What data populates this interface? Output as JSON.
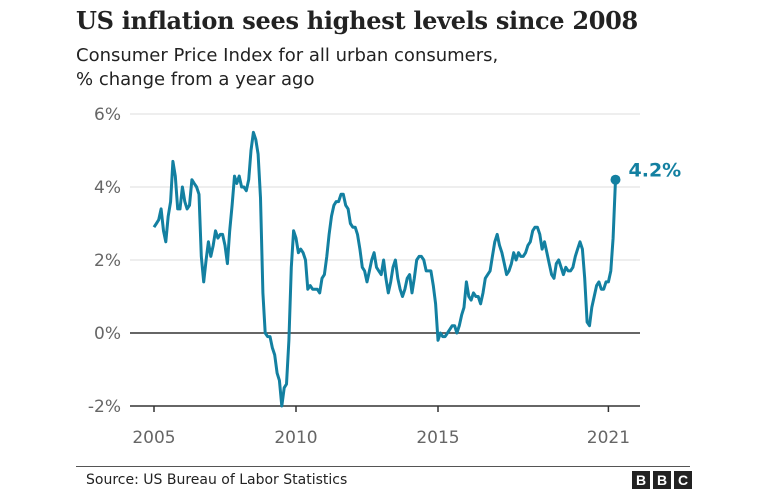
{
  "chart_data": {
    "type": "line",
    "title": "US inflation sees highest levels since 2008",
    "subtitle": [
      "Consumer Price Index for all urban consumers,",
      "% change from a year ago"
    ],
    "xlabel": "",
    "ylabel": "",
    "ylim": [
      -2,
      6
    ],
    "xlim": [
      2005,
      2021.33
    ],
    "y_ticks": [
      {
        "value": 6,
        "label": "6%"
      },
      {
        "value": 4,
        "label": "4%"
      },
      {
        "value": 2,
        "label": "2%"
      },
      {
        "value": 0,
        "label": "0%"
      },
      {
        "value": -2,
        "label": "-2%"
      }
    ],
    "x_ticks": [
      {
        "value": 2005,
        "label": "2005"
      },
      {
        "value": 2010,
        "label": "2010"
      },
      {
        "value": 2015,
        "label": "2015"
      },
      {
        "value": 2021,
        "label": "2021"
      }
    ],
    "grid": true,
    "line_color": "#1380A1",
    "start": "2005-01",
    "frequency": "monthly",
    "values": [
      2.9,
      3.0,
      3.1,
      3.4,
      2.8,
      2.5,
      3.2,
      3.6,
      4.7,
      4.3,
      3.4,
      3.4,
      4.0,
      3.6,
      3.4,
      3.5,
      4.2,
      4.1,
      4.0,
      3.8,
      2.1,
      1.4,
      2.0,
      2.5,
      2.1,
      2.4,
      2.8,
      2.6,
      2.7,
      2.7,
      2.4,
      1.9,
      2.8,
      3.5,
      4.3,
      4.1,
      4.3,
      4.0,
      4.0,
      3.9,
      4.2,
      5.0,
      5.5,
      5.3,
      4.9,
      3.7,
      1.1,
      0.0,
      -0.1,
      -0.1,
      -0.4,
      -0.6,
      -1.1,
      -1.3,
      -2.0,
      -1.5,
      -1.4,
      -0.2,
      1.8,
      2.8,
      2.6,
      2.2,
      2.3,
      2.2,
      2.0,
      1.2,
      1.3,
      1.2,
      1.2,
      1.2,
      1.1,
      1.5,
      1.6,
      2.1,
      2.7,
      3.2,
      3.5,
      3.6,
      3.6,
      3.8,
      3.8,
      3.5,
      3.4,
      3.0,
      2.9,
      2.9,
      2.7,
      2.3,
      1.8,
      1.7,
      1.4,
      1.7,
      2.0,
      2.2,
      1.8,
      1.7,
      1.6,
      2.0,
      1.5,
      1.1,
      1.4,
      1.8,
      2.0,
      1.5,
      1.2,
      1.0,
      1.2,
      1.5,
      1.6,
      1.1,
      1.5,
      2.0,
      2.1,
      2.1,
      2.0,
      1.7,
      1.7,
      1.7,
      1.3,
      0.8,
      -0.2,
      0.0,
      -0.1,
      -0.1,
      0.0,
      0.1,
      0.2,
      0.2,
      0.0,
      0.2,
      0.5,
      0.7,
      1.4,
      1.0,
      0.9,
      1.1,
      1.0,
      1.0,
      0.8,
      1.1,
      1.5,
      1.6,
      1.7,
      2.1,
      2.5,
      2.7,
      2.4,
      2.2,
      1.9,
      1.6,
      1.7,
      1.9,
      2.2,
      2.0,
      2.2,
      2.1,
      2.1,
      2.2,
      2.4,
      2.5,
      2.8,
      2.9,
      2.9,
      2.7,
      2.3,
      2.5,
      2.2,
      1.9,
      1.6,
      1.5,
      1.9,
      2.0,
      1.8,
      1.6,
      1.8,
      1.7,
      1.7,
      1.8,
      2.1,
      2.3,
      2.5,
      2.3,
      1.5,
      0.3,
      0.2,
      0.7,
      1.0,
      1.3,
      1.4,
      1.2,
      1.2,
      1.4,
      1.4,
      1.7,
      2.6,
      4.2
    ],
    "annotations": [
      {
        "text": "4.2%",
        "date": "2021-04",
        "value": 4.2
      }
    ]
  },
  "footer": {
    "source": "Source: US Bureau of Labor Statistics",
    "logo": "BBC"
  }
}
